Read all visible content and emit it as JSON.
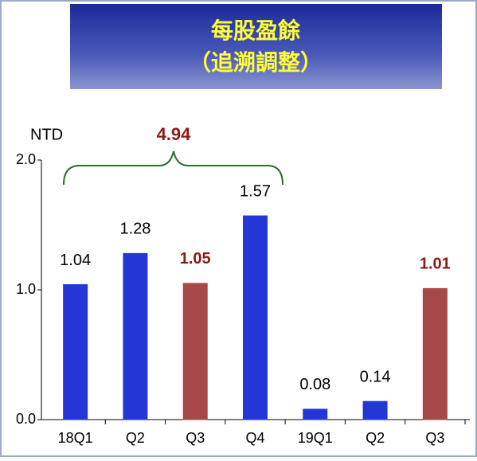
{
  "chart_data": {
    "type": "bar",
    "title": "每股盈餘",
    "subtitle": "（追溯調整）",
    "y_label": "NTD",
    "annotation": "4.94",
    "categories": [
      "18Q1",
      "Q2",
      "Q3",
      "Q4",
      "19Q1",
      "Q2",
      "Q3"
    ],
    "values": [
      1.04,
      1.28,
      1.05,
      1.57,
      0.08,
      0.14,
      1.01
    ],
    "colors": [
      "#2336d6",
      "#2336d6",
      "#a84848",
      "#2336d6",
      "#2336d6",
      "#2336d6",
      "#a84848"
    ],
    "ylim": [
      0,
      2
    ],
    "yticks": [
      {
        "value": 0,
        "label": "0.0"
      },
      {
        "value": 1,
        "label": "1.0"
      },
      {
        "value": 2,
        "label": "2.0"
      }
    ]
  }
}
